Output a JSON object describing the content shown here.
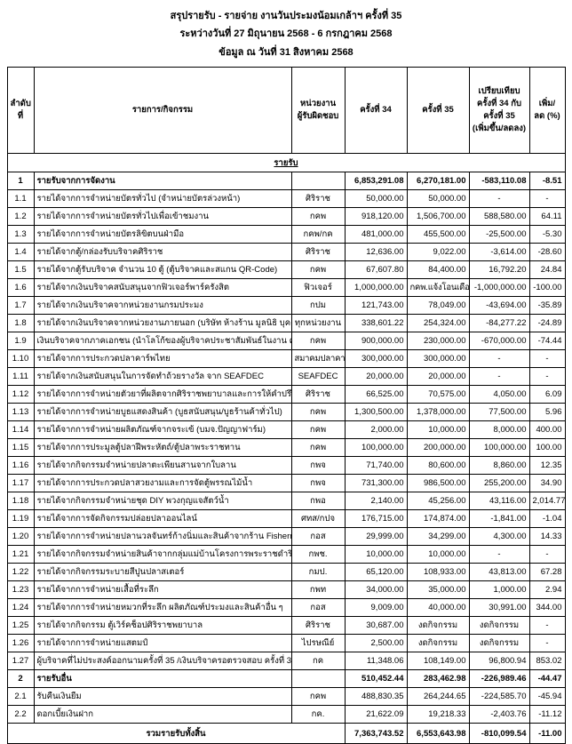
{
  "title": {
    "line1": "สรุปรายรับ - รายจ่าย งานวันประมงน้อมเกล้าฯ ครั้งที่ 35",
    "line2": "ระหว่างวันที่ 27 มิถุนายน 2568 - 6 กรกฎาคม 2568",
    "line3": "ข้อมูล ณ วันที่ 31 สิงหาคม 2568"
  },
  "table": {
    "headers": [
      "ลำดับที่",
      "รายการ/กิจกรรม",
      "หน่วยงาน\nผู้รับผิดชอบ",
      "ครั้งที่ 34",
      "ครั้งที่ 35",
      "เปรียบเทียบ\nครั้งที่ 34 กับ\nครั้งที่ 35\n(เพิ่มขึ้น/ลดลง)",
      "เพิ่ม/\nลด (%)"
    ],
    "section_label": "รายรับ",
    "rows": [
      {
        "no": "1",
        "item": "รายรับจากการจัดงาน",
        "unit": "",
        "c34": "6,853,291.08",
        "c35": "6,270,181.00",
        "diff": "-583,110.08",
        "pct": "-8.51",
        "bold": true
      },
      {
        "no": "1.1",
        "item": "รายได้จากการจำหน่ายบัตรทั่วไป (จำหน่ายบัตรล่วงหน้า)",
        "unit": "ศิริราช",
        "c34": "50,000.00",
        "c35": "50,000.00",
        "diff": "-",
        "pct": "-"
      },
      {
        "no": "1.2",
        "item": "รายได้จากการจำหน่ายบัตรทั่วไปเพื่อเข้าชมงาน",
        "unit": "กคพ",
        "c34": "918,120.00",
        "c35": "1,506,700.00",
        "diff": "588,580.00",
        "pct": "64.11"
      },
      {
        "no": "1.3",
        "item": "รายได้จากการจำหน่ายบัตรลิขิตบนฝ่ามือ",
        "unit": "กคพ/กค",
        "c34": "481,000.00",
        "c35": "455,500.00",
        "diff": "-25,500.00",
        "pct": "-5.30"
      },
      {
        "no": "1.4",
        "item": "รายได้จากตู้/กล่องรับบริจาคศิริราช",
        "unit": "ศิริราช",
        "c34": "12,636.00",
        "c35": "9,022.00",
        "diff": "-3,614.00",
        "pct": "-28.60"
      },
      {
        "no": "1.5",
        "item": "รายได้จากตู้รับบริจาค จำนวน 10 ตู้ (ตู้บริจาคและสแกน QR-Code)",
        "unit": "กคพ",
        "c34": "67,607.80",
        "c35": "84,400.00",
        "diff": "16,792.20",
        "pct": "24.84"
      },
      {
        "no": "1.6",
        "item": "รายได้จากเงินบริจาคสนับสนุนจากฟิวเจอร์พาร์ครังสิต",
        "unit": "ฟิวเจอร์",
        "c34": "1,000,000.00",
        "c35": "กคพ.แจ้งโอนเดือน ก.ย.68",
        "diff": "-1,000,000.00",
        "pct": "-100.00",
        "c35_small": true
      },
      {
        "no": "1.7",
        "item": "รายได้จากเงินบริจาคจากหน่วยงานกรมประมง",
        "unit": "กปม",
        "c34": "121,743.00",
        "c35": "78,049.00",
        "diff": "-43,694.00",
        "pct": "-35.89"
      },
      {
        "no": "1.8",
        "item": "รายได้จากเงินบริจาคจากหน่วยงานภายนอก (บริษัท ห้างร้าน มูลนิธิ บุคคลทั่วไป)",
        "unit": "ทุกหน่วยงาน",
        "c34": "338,601.22",
        "c35": "254,324.00",
        "diff": "-84,277.22",
        "pct": "-24.89"
      },
      {
        "no": "1.9",
        "item": "เงินบริจาคจากภาคเอกชน (นำโลโก้ของผู้บริจาคประชาสัมพันธ์ในงาน ครั้งที่ 35 และผ่านสื่อ)",
        "unit": "กคพ",
        "c34": "900,000.00",
        "c35": "230,000.00",
        "diff": "-670,000.00",
        "pct": "-74.44"
      },
      {
        "no": "1.10",
        "item": "รายได้จากการประกวดปลาคาร์พไทย",
        "unit": "สมาคมปลาคาร์พไทย",
        "c34": "300,000.00",
        "c35": "300,000.00",
        "diff": "-",
        "pct": "-",
        "unit_small": true
      },
      {
        "no": "1.11",
        "item": "รายได้จากเงินสนับสนุนในการจัดทำถ้วยรางวัล จาก SEAFDEC",
        "unit": "SEAFDEC",
        "c34": "20,000.00",
        "c35": "20,000.00",
        "diff": "-",
        "pct": "-"
      },
      {
        "no": "1.12",
        "item": "รายได้จากการจำหน่ายตัวยาที่ผลิตจากศิริราชพยาบาลและการให้คำปรึกษาเรื่องยา",
        "unit": "ศิริราช",
        "c34": "66,525.00",
        "c35": "70,575.00",
        "diff": "4,050.00",
        "pct": "6.09"
      },
      {
        "no": "1.13",
        "item": "รายได้จากการจำหน่ายบูธแสดงสินค้า (บูธสนับสนุน/บูธร้านค้าทั่วไป)",
        "unit": "กคพ",
        "c34": "1,300,500.00",
        "c35": "1,378,000.00",
        "diff": "77,500.00",
        "pct": "5.96"
      },
      {
        "no": "1.14",
        "item": "รายได้จากการจำหน่ายผลิตภัณฑ์จากจระเข้ (บมจ.ปัญญาฟาร์ม)",
        "unit": "กคพ",
        "c34": "2,000.00",
        "c35": "10,000.00",
        "diff": "8,000.00",
        "pct": "400.00"
      },
      {
        "no": "1.15",
        "item": "รายได้จากการประมูลตู้ปลาฝีพระหัตถ์/ตู้ปลาพระราชทาน",
        "unit": "กคพ",
        "c34": "100,000.00",
        "c35": "200,000.00",
        "diff": "100,000.00",
        "pct": "100.00"
      },
      {
        "no": "1.16",
        "item": "รายได้จากกิจกรรมจำหน่ายปลาตะเพียนสานจากใบลาน",
        "unit": "กพจ",
        "c34": "71,740.00",
        "c35": "80,600.00",
        "diff": "8,860.00",
        "pct": "12.35"
      },
      {
        "no": "1.17",
        "item": "รายได้จากการประกวดปลาสวยงามและการจัดตู้พรรณไม้น้ำ",
        "unit": "กพจ",
        "c34": "731,300.00",
        "c35": "986,500.00",
        "diff": "255,200.00",
        "pct": "34.90"
      },
      {
        "no": "1.18",
        "item": "รายได้จากกิจกรรมจำหน่ายชุด DIY พวงกุญแจสัตว์น้ำ",
        "unit": "กพอ",
        "c34": "2,140.00",
        "c35": "45,256.00",
        "diff": "43,116.00",
        "pct": "2,014.77"
      },
      {
        "no": "1.19",
        "item": "รายได้จากการจัดกิจกรรมปล่อยปลาออนไลน์",
        "unit": "ศทส/กปจ",
        "c34": "176,715.00",
        "c35": "174,874.00",
        "diff": "-1,841.00",
        "pct": "-1.04"
      },
      {
        "no": "1.20",
        "item": "รายได้จากการจำหน่ายปลานวลจันทร์ก้างนิ่มและสินค้าจากร้าน Fisherman Shop",
        "unit": "กอส",
        "c34": "29,999.00",
        "c35": "34,299.00",
        "diff": "4,300.00",
        "pct": "14.33"
      },
      {
        "no": "1.21",
        "item": "รายได้จากกิจกรรมจำหน่ายสินค้าจากกลุ่มแม่บ้านโครงการพระราชดำริ (จำหน่ายสาหร่ายทะเล)",
        "unit": "กพช.",
        "c34": "10,000.00",
        "c35": "10,000.00",
        "diff": "-",
        "pct": "-"
      },
      {
        "no": "1.22",
        "item": "รายได้จากกิจกรรมระบายสีปูนปลาสเตอร์",
        "unit": "กมป.",
        "c34": "65,120.00",
        "c35": "108,933.00",
        "diff": "43,813.00",
        "pct": "67.28"
      },
      {
        "no": "1.23",
        "item": "รายได้จากการจำหน่ายเสื้อที่ระลึก",
        "unit": "กพท",
        "c34": "34,000.00",
        "c35": "35,000.00",
        "diff": "1,000.00",
        "pct": "2.94"
      },
      {
        "no": "1.24",
        "item": "รายได้จากการจำหน่ายหมวกที่ระลึก ผลิตภัณฑ์ประมงและสินค้าอื่น ๆ",
        "unit": "กอส",
        "c34": "9,009.00",
        "c35": "40,000.00",
        "diff": "30,991.00",
        "pct": "344.00"
      },
      {
        "no": "1.25",
        "item": "รายได้จากกิจกรรม ตู้เวิร์คช็อปศิริราชพยาบาล",
        "unit": "ศิริราช",
        "c34": "30,687.00",
        "c35": "งดกิจกรรม",
        "diff": "งดกิจกรรม",
        "pct": "-"
      },
      {
        "no": "1.26",
        "item": "รายได้จากการจำหน่ายแสตมป์",
        "unit": "ไปรษณีย์",
        "c34": "2,500.00",
        "c35": "งดกิจกรรม",
        "diff": "งดกิจกรรม",
        "pct": "-"
      },
      {
        "no": "1.27",
        "item": "ผู้บริจาคที่ไม่ประสงค์ออกนามครั้งที่ 35 /เงินบริจาครอตรวจสอบ ครั้งที่ 35",
        "unit": "กค",
        "c34": "11,348.06",
        "c35": "108,149.00",
        "diff": "96,800.94",
        "pct": "853.02"
      },
      {
        "no": "2",
        "item": "รายรับอื่น",
        "unit": "",
        "c34": "510,452.44",
        "c35": "283,462.98",
        "diff": "-226,989.46",
        "pct": "-44.47",
        "bold": true
      },
      {
        "no": "2.1",
        "item": "รับคืนเงินยืม",
        "unit": "กคพ",
        "c34": "488,830.35",
        "c35": "264,244.65",
        "diff": "-224,585.70",
        "pct": "-45.94"
      },
      {
        "no": "2.2",
        "item": "ดอกเบี้ยเงินฝาก",
        "unit": "กค.",
        "c34": "21,622.09",
        "c35": "19,218.33",
        "diff": "-2,403.76",
        "pct": "-11.12"
      }
    ],
    "total": {
      "label": "รวมรายรับทั้งสิ้น",
      "c34": "7,363,743.52",
      "c35": "6,553,643.98",
      "diff": "-810,099.54",
      "pct": "-11.00"
    }
  }
}
